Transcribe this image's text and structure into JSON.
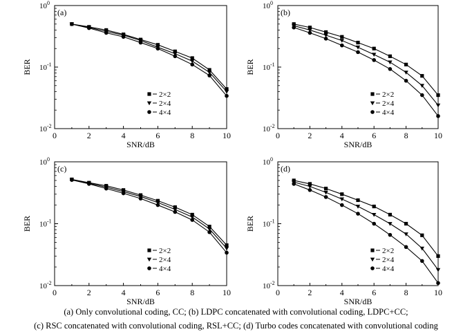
{
  "chart_data": [
    {
      "type": "line",
      "panel_label": "(a)",
      "xlabel": "SNR/dB",
      "ylabel": "BER",
      "xlim": [
        0,
        10
      ],
      "ylim": [
        0.01,
        1
      ],
      "y_scale": "log",
      "x_ticks": [
        0,
        2,
        4,
        6,
        8,
        10
      ],
      "y_ticks": [
        {
          "base": "10",
          "exp": "0"
        },
        {
          "base": "10",
          "exp": "-1"
        },
        {
          "base": "10",
          "exp": "-2"
        }
      ],
      "legend_position": "lower-left",
      "x": [
        1,
        2,
        3,
        4,
        5,
        6,
        7,
        8,
        9,
        10
      ],
      "series": [
        {
          "name": "2×2",
          "marker": "square",
          "values": [
            0.5,
            0.45,
            0.4,
            0.34,
            0.28,
            0.23,
            0.18,
            0.14,
            0.09,
            0.044
          ]
        },
        {
          "name": "2×4",
          "marker": "triangle-down",
          "values": [
            0.5,
            0.44,
            0.38,
            0.33,
            0.27,
            0.21,
            0.165,
            0.125,
            0.082,
            0.04
          ]
        },
        {
          "name": "4×4",
          "marker": "circle",
          "values": [
            0.5,
            0.43,
            0.36,
            0.31,
            0.25,
            0.2,
            0.15,
            0.11,
            0.073,
            0.034
          ]
        }
      ]
    },
    {
      "type": "line",
      "panel_label": "(b)",
      "xlabel": "SNR/dB",
      "ylabel": "BER",
      "xlim": [
        0,
        10
      ],
      "ylim": [
        0.01,
        1
      ],
      "y_scale": "log",
      "x_ticks": [
        0,
        2,
        4,
        6,
        8,
        10
      ],
      "y_ticks": [
        {
          "base": "10",
          "exp": "0"
        },
        {
          "base": "10",
          "exp": "-1"
        },
        {
          "base": "10",
          "exp": "-2"
        }
      ],
      "legend_position": "lower-left",
      "x": [
        1,
        2,
        3,
        4,
        5,
        6,
        7,
        8,
        9,
        10
      ],
      "series": [
        {
          "name": "2×2",
          "marker": "square",
          "values": [
            0.5,
            0.44,
            0.37,
            0.31,
            0.25,
            0.2,
            0.15,
            0.11,
            0.072,
            0.035
          ]
        },
        {
          "name": "2×4",
          "marker": "triangle-down",
          "values": [
            0.47,
            0.4,
            0.33,
            0.27,
            0.21,
            0.16,
            0.12,
            0.082,
            0.05,
            0.024
          ]
        },
        {
          "name": "4×4",
          "marker": "circle",
          "values": [
            0.44,
            0.36,
            0.29,
            0.225,
            0.175,
            0.13,
            0.093,
            0.06,
            0.035,
            0.016
          ]
        }
      ]
    },
    {
      "type": "line",
      "panel_label": "(c)",
      "xlabel": "SNR/dB",
      "ylabel": "BER",
      "xlim": [
        0,
        10
      ],
      "ylim": [
        0.01,
        1
      ],
      "y_scale": "log",
      "x_ticks": [
        0,
        2,
        4,
        6,
        8,
        10
      ],
      "y_ticks": [
        {
          "base": "10",
          "exp": "0"
        },
        {
          "base": "10",
          "exp": "-1"
        },
        {
          "base": "10",
          "exp": "-2"
        }
      ],
      "legend_position": "lower-left",
      "x": [
        1,
        2,
        3,
        4,
        5,
        6,
        7,
        8,
        9,
        10
      ],
      "series": [
        {
          "name": "2×2",
          "marker": "square",
          "values": [
            0.52,
            0.46,
            0.41,
            0.35,
            0.29,
            0.235,
            0.185,
            0.14,
            0.09,
            0.045
          ]
        },
        {
          "name": "2×4",
          "marker": "triangle-down",
          "values": [
            0.51,
            0.45,
            0.39,
            0.33,
            0.275,
            0.22,
            0.17,
            0.128,
            0.082,
            0.04
          ]
        },
        {
          "name": "4×4",
          "marker": "circle",
          "values": [
            0.51,
            0.44,
            0.37,
            0.31,
            0.255,
            0.2,
            0.155,
            0.115,
            0.073,
            0.034
          ]
        }
      ]
    },
    {
      "type": "line",
      "panel_label": "(d)",
      "xlabel": "SNR/dB",
      "ylabel": "BER",
      "xlim": [
        0,
        10
      ],
      "ylim": [
        0.01,
        1
      ],
      "y_scale": "log",
      "x_ticks": [
        0,
        2,
        4,
        6,
        8,
        10
      ],
      "y_ticks": [
        {
          "base": "10",
          "exp": "0"
        },
        {
          "base": "10",
          "exp": "-1"
        },
        {
          "base": "10",
          "exp": "-2"
        }
      ],
      "legend_position": "lower-left",
      "x": [
        1,
        2,
        3,
        4,
        5,
        6,
        7,
        8,
        9,
        10
      ],
      "series": [
        {
          "name": "2×2",
          "marker": "square",
          "values": [
            0.5,
            0.44,
            0.37,
            0.3,
            0.24,
            0.19,
            0.14,
            0.1,
            0.065,
            0.03
          ]
        },
        {
          "name": "2×4",
          "marker": "triangle-down",
          "values": [
            0.47,
            0.4,
            0.32,
            0.25,
            0.19,
            0.14,
            0.1,
            0.068,
            0.04,
            0.018
          ]
        },
        {
          "name": "4×4",
          "marker": "circle",
          "values": [
            0.44,
            0.35,
            0.27,
            0.2,
            0.145,
            0.1,
            0.066,
            0.042,
            0.025,
            0.011
          ]
        }
      ]
    }
  ],
  "caption": {
    "line1": "(a)  Only convolutional coding, CC; (b) LDPC concatenated with convolutional coding, LDPC+CC;",
    "line2": "(c) RSC concatenated with convolutional coding, RSL+CC; (d) Turbo codes concatenated with convolutional coding"
  }
}
